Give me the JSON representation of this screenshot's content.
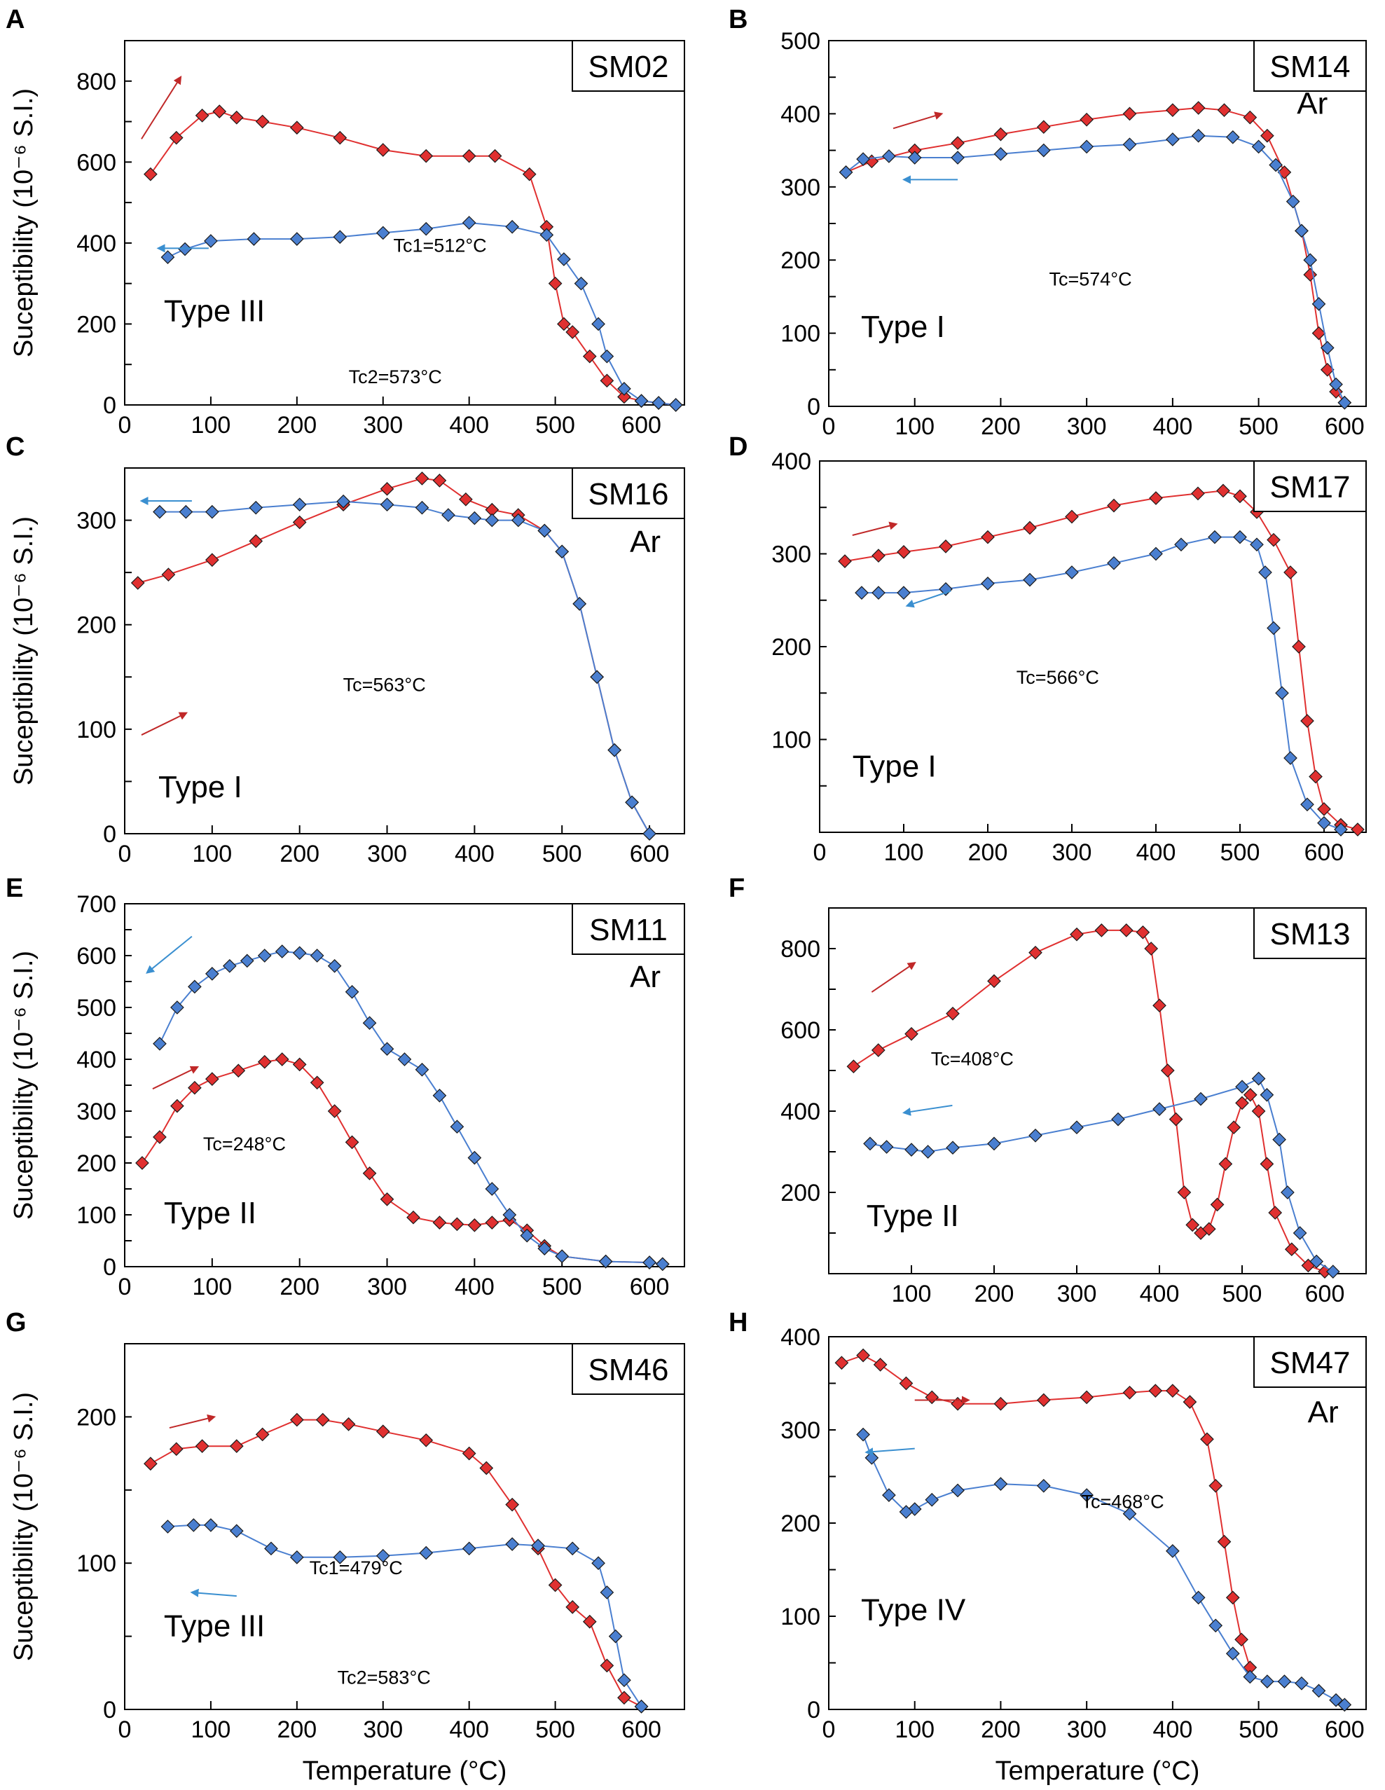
{
  "figure": {
    "y_axis_label": "Suceptibility (10⁻⁶ S.I.)",
    "x_axis_label": "Temperature (°C)"
  },
  "chart_data": [
    {
      "id": "A",
      "title": "SM02",
      "type": "scatter",
      "atmosphere": "",
      "type_label": "Type III",
      "xlim": [
        0,
        650
      ],
      "ylim": [
        0,
        900
      ],
      "xticks": [
        0,
        100,
        200,
        300,
        400,
        500,
        600
      ],
      "yticks": [
        0,
        200,
        400,
        600,
        800
      ],
      "annotations": [
        "Tc1=512°C",
        "Tc2=573°C"
      ],
      "series": [
        {
          "name": "heating",
          "color": "#e03030",
          "x": [
            30,
            60,
            90,
            110,
            130,
            160,
            200,
            250,
            300,
            350,
            400,
            430,
            470,
            490,
            500,
            510,
            520,
            540,
            560,
            580,
            600,
            620,
            640
          ],
          "y": [
            570,
            660,
            715,
            725,
            710,
            700,
            685,
            660,
            630,
            615,
            615,
            615,
            570,
            440,
            300,
            200,
            180,
            120,
            60,
            20,
            10,
            5,
            0
          ]
        },
        {
          "name": "cooling",
          "color": "#4a7fd0",
          "x": [
            640,
            620,
            600,
            580,
            560,
            550,
            530,
            510,
            490,
            450,
            400,
            350,
            300,
            250,
            200,
            150,
            100,
            70,
            50
          ],
          "y": [
            0,
            5,
            10,
            40,
            120,
            200,
            300,
            360,
            420,
            440,
            450,
            435,
            425,
            415,
            410,
            410,
            405,
            385,
            365
          ]
        }
      ],
      "arrows": [
        {
          "color": "#c02828",
          "dir": "up-right"
        },
        {
          "color": "#3a8fd0",
          "dir": "left"
        }
      ]
    },
    {
      "id": "B",
      "title": "SM14",
      "type": "scatter",
      "atmosphere": "Ar",
      "type_label": "Type I",
      "xlim": [
        0,
        625
      ],
      "ylim": [
        0,
        500
      ],
      "xticks": [
        0,
        100,
        200,
        300,
        400,
        500,
        600
      ],
      "yticks": [
        0,
        100,
        200,
        300,
        400,
        500
      ],
      "annotations": [
        "Tc=574°C"
      ],
      "series": [
        {
          "name": "heating",
          "color": "#e03030",
          "x": [
            20,
            50,
            100,
            150,
            200,
            250,
            300,
            350,
            400,
            430,
            460,
            490,
            510,
            530,
            550,
            560,
            570,
            580,
            590,
            600
          ],
          "y": [
            320,
            335,
            350,
            360,
            372,
            382,
            392,
            400,
            405,
            408,
            405,
            395,
            370,
            320,
            240,
            180,
            100,
            50,
            20,
            5
          ]
        },
        {
          "name": "cooling",
          "color": "#4a7fd0",
          "x": [
            600,
            590,
            580,
            570,
            560,
            550,
            540,
            520,
            500,
            470,
            430,
            400,
            350,
            300,
            250,
            200,
            150,
            100,
            70,
            40,
            20
          ],
          "y": [
            5,
            30,
            80,
            140,
            200,
            240,
            280,
            330,
            355,
            368,
            370,
            365,
            358,
            355,
            350,
            345,
            340,
            340,
            342,
            338,
            320
          ]
        }
      ],
      "arrows": [
        {
          "color": "#c02828",
          "dir": "right"
        },
        {
          "color": "#3a8fd0",
          "dir": "left"
        }
      ]
    },
    {
      "id": "C",
      "title": "SM16",
      "type": "scatter",
      "atmosphere": "Ar",
      "type_label": "Type I",
      "xlim": [
        0,
        640
      ],
      "ylim": [
        0,
        350
      ],
      "xticks": [
        0,
        100,
        200,
        300,
        400,
        500,
        600
      ],
      "yticks": [
        0,
        100,
        200,
        300
      ],
      "annotations": [
        "Tc=563°C"
      ],
      "series": [
        {
          "name": "heating",
          "color": "#e03030",
          "x": [
            15,
            50,
            100,
            150,
            200,
            250,
            300,
            340,
            360,
            390,
            420,
            450,
            480,
            500,
            520,
            540,
            560,
            580,
            600
          ],
          "y": [
            240,
            248,
            262,
            280,
            298,
            315,
            330,
            340,
            338,
            320,
            310,
            305,
            290,
            270,
            220,
            150,
            80,
            30,
            0
          ]
        },
        {
          "name": "cooling",
          "color": "#4a7fd0",
          "x": [
            600,
            580,
            560,
            540,
            520,
            500,
            480,
            450,
            420,
            400,
            370,
            340,
            300,
            250,
            200,
            150,
            100,
            70,
            40
          ],
          "y": [
            0,
            30,
            80,
            150,
            220,
            270,
            290,
            300,
            300,
            302,
            305,
            312,
            315,
            318,
            315,
            312,
            308,
            308,
            308
          ]
        }
      ],
      "arrows": [
        {
          "color": "#3a8fd0",
          "dir": "left"
        },
        {
          "color": "#c02828",
          "dir": "right"
        }
      ]
    },
    {
      "id": "D",
      "title": "SM17",
      "type": "scatter",
      "atmosphere": "",
      "type_label": "Type I",
      "xlim": [
        0,
        650
      ],
      "ylim": [
        0,
        400
      ],
      "xticks": [
        0,
        100,
        200,
        300,
        400,
        500,
        600
      ],
      "yticks": [
        100,
        200,
        300,
        400
      ],
      "annotations": [
        "Tc=566°C"
      ],
      "series": [
        {
          "name": "heating",
          "color": "#e03030",
          "x": [
            30,
            70,
            100,
            150,
            200,
            250,
            300,
            350,
            400,
            450,
            480,
            500,
            520,
            540,
            560,
            570,
            580,
            590,
            600,
            620,
            640
          ],
          "y": [
            292,
            298,
            302,
            308,
            318,
            328,
            340,
            352,
            360,
            365,
            368,
            362,
            345,
            315,
            280,
            200,
            120,
            60,
            25,
            8,
            3
          ]
        },
        {
          "name": "cooling",
          "color": "#4a7fd0",
          "x": [
            620,
            600,
            580,
            560,
            550,
            540,
            530,
            520,
            500,
            470,
            430,
            400,
            350,
            300,
            250,
            200,
            150,
            100,
            70,
            50
          ],
          "y": [
            3,
            10,
            30,
            80,
            150,
            220,
            280,
            310,
            318,
            318,
            310,
            300,
            290,
            280,
            272,
            268,
            262,
            258,
            258,
            258
          ]
        }
      ],
      "arrows": [
        {
          "color": "#c02828",
          "dir": "right"
        },
        {
          "color": "#3a8fd0",
          "dir": "left"
        }
      ]
    },
    {
      "id": "E",
      "title": "SM11",
      "type": "scatter",
      "atmosphere": "Ar",
      "type_label": "Type II",
      "xlim": [
        0,
        640
      ],
      "ylim": [
        0,
        700
      ],
      "xticks": [
        0,
        100,
        200,
        300,
        400,
        500,
        600
      ],
      "yticks": [
        0,
        100,
        200,
        300,
        400,
        500,
        600,
        700
      ],
      "annotations": [
        "Tc=248°C"
      ],
      "series": [
        {
          "name": "heating",
          "color": "#e03030",
          "x": [
            20,
            40,
            60,
            80,
            100,
            130,
            160,
            180,
            200,
            220,
            240,
            260,
            280,
            300,
            330,
            360,
            380,
            400,
            420,
            440,
            460,
            480,
            500,
            550,
            600,
            615
          ],
          "y": [
            200,
            250,
            310,
            345,
            362,
            378,
            395,
            400,
            390,
            355,
            300,
            240,
            180,
            130,
            95,
            85,
            82,
            80,
            85,
            90,
            70,
            40,
            20,
            10,
            8,
            5
          ]
        },
        {
          "name": "cooling",
          "color": "#4a7fd0",
          "x": [
            615,
            600,
            550,
            500,
            480,
            460,
            440,
            420,
            400,
            380,
            360,
            340,
            320,
            300,
            280,
            260,
            240,
            220,
            200,
            180,
            160,
            140,
            120,
            100,
            80,
            60,
            40
          ],
          "y": [
            5,
            8,
            10,
            20,
            35,
            60,
            100,
            150,
            210,
            270,
            330,
            380,
            400,
            420,
            470,
            530,
            580,
            600,
            605,
            608,
            600,
            590,
            580,
            565,
            540,
            500,
            430
          ]
        }
      ],
      "arrows": [
        {
          "color": "#3a8fd0",
          "dir": "down-left"
        },
        {
          "color": "#c02828",
          "dir": "up-right"
        }
      ]
    },
    {
      "id": "F",
      "title": "SM13",
      "type": "scatter",
      "atmosphere": "",
      "type_label": "Type II",
      "xlim": [
        0,
        650
      ],
      "ylim": [
        0,
        900
      ],
      "xticks": [
        100,
        200,
        300,
        400,
        500,
        600
      ],
      "yticks": [
        200,
        400,
        600,
        800
      ],
      "annotations": [
        "Tc=408°C"
      ],
      "series": [
        {
          "name": "heating",
          "color": "#e03030",
          "x": [
            30,
            60,
            100,
            150,
            200,
            250,
            300,
            330,
            360,
            380,
            390,
            400,
            410,
            420,
            430,
            440,
            450,
            460,
            470,
            480,
            490,
            500,
            510,
            520,
            530,
            540,
            560,
            580,
            600
          ],
          "y": [
            510,
            550,
            590,
            640,
            720,
            790,
            835,
            845,
            845,
            840,
            800,
            660,
            500,
            380,
            200,
            120,
            100,
            110,
            170,
            270,
            360,
            420,
            440,
            400,
            270,
            150,
            60,
            20,
            5
          ]
        },
        {
          "name": "cooling",
          "color": "#4a7fd0",
          "x": [
            610,
            590,
            570,
            555,
            545,
            530,
            520,
            500,
            450,
            400,
            350,
            300,
            250,
            200,
            150,
            120,
            100,
            70,
            50
          ],
          "y": [
            5,
            30,
            100,
            200,
            330,
            440,
            480,
            460,
            430,
            405,
            380,
            360,
            340,
            320,
            310,
            300,
            305,
            312,
            320
          ]
        }
      ],
      "arrows": [
        {
          "color": "#c02828",
          "dir": "up-right"
        },
        {
          "color": "#3a8fd0",
          "dir": "left"
        }
      ]
    },
    {
      "id": "G",
      "title": "SM46",
      "type": "scatter",
      "atmosphere": "",
      "type_label": "Type III",
      "xlim": [
        0,
        650
      ],
      "ylim": [
        0,
        250
      ],
      "xticks": [
        0,
        100,
        200,
        300,
        400,
        500,
        600
      ],
      "yticks": [
        0,
        100,
        200
      ],
      "annotations": [
        "Tc1=479°C",
        "Tc2=583°C"
      ],
      "series": [
        {
          "name": "heating",
          "color": "#e03030",
          "x": [
            30,
            60,
            90,
            130,
            160,
            200,
            230,
            260,
            300,
            350,
            400,
            420,
            450,
            480,
            500,
            520,
            540,
            560,
            580,
            600
          ],
          "y": [
            168,
            178,
            180,
            180,
            188,
            198,
            198,
            195,
            190,
            184,
            175,
            165,
            140,
            110,
            85,
            70,
            60,
            30,
            8,
            2
          ]
        },
        {
          "name": "cooling",
          "color": "#4a7fd0",
          "x": [
            600,
            580,
            570,
            560,
            550,
            520,
            480,
            450,
            400,
            350,
            300,
            250,
            200,
            170,
            130,
            100,
            80,
            50
          ],
          "y": [
            2,
            20,
            50,
            80,
            100,
            110,
            112,
            113,
            110,
            107,
            105,
            104,
            104,
            110,
            122,
            126,
            126,
            125
          ]
        }
      ],
      "arrows": [
        {
          "color": "#c02828",
          "dir": "right"
        },
        {
          "color": "#3a8fd0",
          "dir": "left"
        }
      ]
    },
    {
      "id": "H",
      "title": "SM47",
      "type": "scatter",
      "atmosphere": "Ar",
      "type_label": "Type IV",
      "xlim": [
        0,
        625
      ],
      "ylim": [
        0,
        400
      ],
      "xticks": [
        0,
        100,
        200,
        300,
        400,
        500,
        600
      ],
      "yticks": [
        0,
        100,
        200,
        300,
        400
      ],
      "annotations": [
        "Tc=468°C"
      ],
      "series": [
        {
          "name": "heating",
          "color": "#e03030",
          "x": [
            15,
            40,
            60,
            90,
            120,
            150,
            200,
            250,
            300,
            350,
            380,
            400,
            420,
            440,
            450,
            460,
            470,
            480,
            490
          ],
          "y": [
            372,
            380,
            370,
            350,
            335,
            328,
            328,
            332,
            335,
            340,
            342,
            342,
            330,
            290,
            240,
            180,
            120,
            75,
            45
          ]
        },
        {
          "name": "cooling",
          "color": "#4a7fd0",
          "x": [
            600,
            590,
            570,
            550,
            530,
            510,
            490,
            470,
            450,
            430,
            400,
            350,
            300,
            250,
            200,
            150,
            120,
            100,
            90,
            70,
            50,
            40
          ],
          "y": [
            5,
            10,
            20,
            28,
            30,
            30,
            35,
            60,
            90,
            120,
            170,
            210,
            230,
            240,
            242,
            235,
            225,
            215,
            212,
            230,
            270,
            295
          ]
        }
      ],
      "arrows": [
        {
          "color": "#c02828",
          "dir": "right"
        },
        {
          "color": "#3a8fd0",
          "dir": "left"
        }
      ]
    }
  ]
}
